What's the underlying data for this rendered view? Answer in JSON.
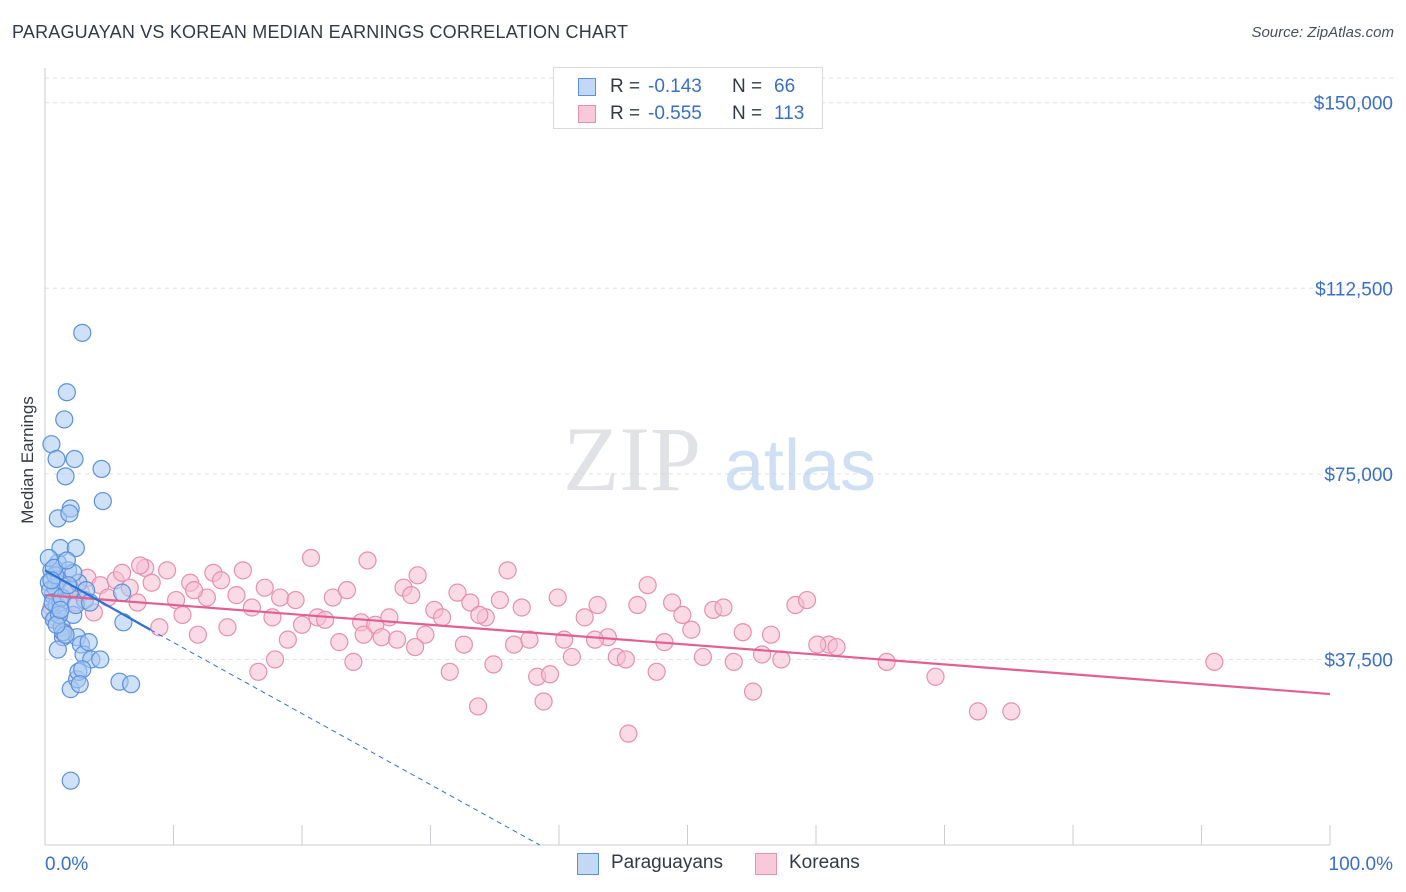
{
  "title": "PARAGUAYAN VS KOREAN MEDIAN EARNINGS CORRELATION CHART",
  "source": "Source: ZipAtlas.com",
  "watermark": {
    "zip": "ZIP",
    "atlas": "atlas"
  },
  "legend_top": [
    {
      "r_label": "R =",
      "r_value": "-0.143",
      "n_label": "N =",
      "n_value": "66"
    },
    {
      "r_label": "R =",
      "r_value": "-0.555",
      "n_label": "N =",
      "n_value": "113"
    }
  ],
  "legend_bottom": [
    "Paraguayans",
    "Koreans"
  ],
  "colors": {
    "paraguayan_fill": "#a8c8f0",
    "paraguayan_stroke": "#5b91dd",
    "paraguayan_line": "#2f6fd6",
    "korean_fill": "#f6bdd0",
    "korean_stroke": "#e78fae",
    "korean_line": "#e35f92",
    "tick_label": "#3a6fc9",
    "grid": "#dde1e6"
  },
  "chart_data": {
    "type": "scatter",
    "xlabel": "",
    "ylabel": "Median Earnings",
    "xlim": [
      0,
      100
    ],
    "ylim": [
      0,
      155000
    ],
    "x_tick_labels": [
      "0.0%",
      "100.0%"
    ],
    "y_ticks": [
      37500,
      75000,
      112500,
      150000
    ],
    "y_tick_labels": [
      "$37,500",
      "$75,000",
      "$112,500",
      "$150,000"
    ],
    "series": [
      {
        "name": "Paraguayans",
        "trend": {
          "x": [
            0,
            8.2
          ],
          "y": [
            55500,
            43500
          ],
          "dashed_to": [
            38.5,
            0
          ]
        },
        "points": [
          [
            0.3,
            53000
          ],
          [
            0.4,
            47000
          ],
          [
            0.5,
            55500
          ],
          [
            0.6,
            50500
          ],
          [
            0.7,
            45500
          ],
          [
            0.8,
            52000
          ],
          [
            0.9,
            48500
          ],
          [
            1.0,
            57000
          ],
          [
            1.1,
            53500
          ],
          [
            1.2,
            49000
          ],
          [
            1.3,
            44000
          ],
          [
            1.4,
            42000
          ],
          [
            0.5,
            81000
          ],
          [
            0.9,
            78000
          ],
          [
            1.0,
            66000
          ],
          [
            1.2,
            60000
          ],
          [
            1.6,
            74500
          ],
          [
            1.8,
            55500
          ],
          [
            2.0,
            51500
          ],
          [
            2.2,
            46500
          ],
          [
            2.5,
            42000
          ],
          [
            2.8,
            40500
          ],
          [
            3.0,
            38500
          ],
          [
            1.5,
            86000
          ],
          [
            1.7,
            91500
          ],
          [
            2.3,
            78000
          ],
          [
            2.0,
            68000
          ],
          [
            1.9,
            67000
          ],
          [
            2.4,
            60000
          ],
          [
            2.6,
            53000
          ],
          [
            3.1,
            49500
          ],
          [
            3.4,
            41000
          ],
          [
            3.6,
            37500
          ],
          [
            4.3,
            37500
          ],
          [
            4.4,
            76000
          ],
          [
            4.5,
            69500
          ],
          [
            6.0,
            51000
          ],
          [
            6.1,
            45000
          ],
          [
            5.8,
            33000
          ],
          [
            6.7,
            32500
          ],
          [
            2.9,
            103500
          ],
          [
            2.0,
            31500
          ],
          [
            2.5,
            33500
          ],
          [
            2.6,
            35000
          ],
          [
            2.9,
            35500
          ],
          [
            2.7,
            32500
          ],
          [
            1.0,
            39500
          ],
          [
            1.4,
            43000
          ],
          [
            1.6,
            42500
          ],
          [
            0.4,
            51500
          ],
          [
            0.6,
            49000
          ],
          [
            0.8,
            54500
          ],
          [
            1.1,
            46500
          ],
          [
            0.3,
            58000
          ],
          [
            0.7,
            56000
          ],
          [
            1.3,
            50000
          ],
          [
            2.2,
            55000
          ],
          [
            2.4,
            48500
          ],
          [
            1.8,
            52500
          ],
          [
            0.9,
            44500
          ],
          [
            1.2,
            47500
          ],
          [
            0.5,
            53500
          ],
          [
            3.2,
            51500
          ],
          [
            3.5,
            49000
          ],
          [
            2.0,
            13000
          ],
          [
            1.7,
            57500
          ]
        ]
      },
      {
        "name": "Koreans",
        "trend": {
          "x": [
            0,
            100
          ],
          "y": [
            50500,
            30500
          ]
        },
        "points": [
          [
            0.5,
            48000
          ],
          [
            0.8,
            46000
          ],
          [
            1.2,
            50000
          ],
          [
            1.5,
            43000
          ],
          [
            2.0,
            52000
          ],
          [
            2.4,
            49000
          ],
          [
            2.8,
            51000
          ],
          [
            3.3,
            54000
          ],
          [
            3.8,
            47000
          ],
          [
            4.3,
            52500
          ],
          [
            4.9,
            50000
          ],
          [
            5.5,
            53500
          ],
          [
            6.0,
            55000
          ],
          [
            6.6,
            52000
          ],
          [
            7.2,
            49000
          ],
          [
            7.8,
            56000
          ],
          [
            8.3,
            53000
          ],
          [
            8.9,
            44000
          ],
          [
            9.5,
            55500
          ],
          [
            10.2,
            49500
          ],
          [
            10.7,
            46500
          ],
          [
            11.3,
            53000
          ],
          [
            11.9,
            42500
          ],
          [
            12.6,
            50000
          ],
          [
            13.1,
            55000
          ],
          [
            13.7,
            53500
          ],
          [
            14.2,
            44000
          ],
          [
            14.9,
            50500
          ],
          [
            15.4,
            55500
          ],
          [
            16.1,
            48000
          ],
          [
            16.6,
            35000
          ],
          [
            17.1,
            52000
          ],
          [
            17.7,
            46000
          ],
          [
            18.3,
            50000
          ],
          [
            18.9,
            41500
          ],
          [
            19.5,
            49500
          ],
          [
            20.0,
            44500
          ],
          [
            20.7,
            58000
          ],
          [
            21.2,
            46000
          ],
          [
            21.8,
            45500
          ],
          [
            22.4,
            50000
          ],
          [
            22.9,
            41000
          ],
          [
            23.5,
            51500
          ],
          [
            24.0,
            37000
          ],
          [
            24.6,
            45000
          ],
          [
            25.1,
            57500
          ],
          [
            25.7,
            44500
          ],
          [
            26.2,
            42000
          ],
          [
            26.8,
            46000
          ],
          [
            27.4,
            41500
          ],
          [
            27.9,
            52000
          ],
          [
            28.5,
            50500
          ],
          [
            29.0,
            54500
          ],
          [
            29.6,
            42500
          ],
          [
            30.3,
            47500
          ],
          [
            30.9,
            46000
          ],
          [
            31.5,
            35000
          ],
          [
            32.1,
            51000
          ],
          [
            32.6,
            40500
          ],
          [
            33.1,
            49000
          ],
          [
            33.7,
            28000
          ],
          [
            34.3,
            46000
          ],
          [
            34.9,
            36500
          ],
          [
            35.4,
            49500
          ],
          [
            36.0,
            55500
          ],
          [
            36.5,
            40500
          ],
          [
            37.1,
            48000
          ],
          [
            37.7,
            41500
          ],
          [
            38.3,
            34000
          ],
          [
            38.8,
            29000
          ],
          [
            39.3,
            34500
          ],
          [
            39.9,
            50000
          ],
          [
            40.4,
            41500
          ],
          [
            41.0,
            38000
          ],
          [
            42.0,
            46000
          ],
          [
            43.0,
            48500
          ],
          [
            43.8,
            42000
          ],
          [
            44.5,
            38000
          ],
          [
            45.4,
            22500
          ],
          [
            46.1,
            48500
          ],
          [
            46.9,
            52500
          ],
          [
            47.6,
            35000
          ],
          [
            48.2,
            41000
          ],
          [
            48.8,
            49000
          ],
          [
            49.6,
            46500
          ],
          [
            50.3,
            43500
          ],
          [
            51.2,
            38000
          ],
          [
            52.0,
            47500
          ],
          [
            52.8,
            48000
          ],
          [
            53.6,
            37000
          ],
          [
            54.3,
            43000
          ],
          [
            55.1,
            31000
          ],
          [
            55.8,
            38500
          ],
          [
            56.5,
            42500
          ],
          [
            57.3,
            37500
          ],
          [
            58.4,
            48500
          ],
          [
            59.3,
            49500
          ],
          [
            61.0,
            40500
          ],
          [
            61.6,
            40000
          ],
          [
            65.5,
            37000
          ],
          [
            69.3,
            34000
          ],
          [
            72.6,
            27000
          ],
          [
            75.2,
            27000
          ],
          [
            91.0,
            37000
          ],
          [
            45.2,
            37500
          ],
          [
            60.1,
            40500
          ],
          [
            42.8,
            41500
          ],
          [
            33.8,
            46500
          ],
          [
            28.8,
            40000
          ],
          [
            24.8,
            42500
          ],
          [
            17.9,
            37500
          ],
          [
            11.6,
            51500
          ],
          [
            7.4,
            56500
          ]
        ]
      }
    ]
  }
}
